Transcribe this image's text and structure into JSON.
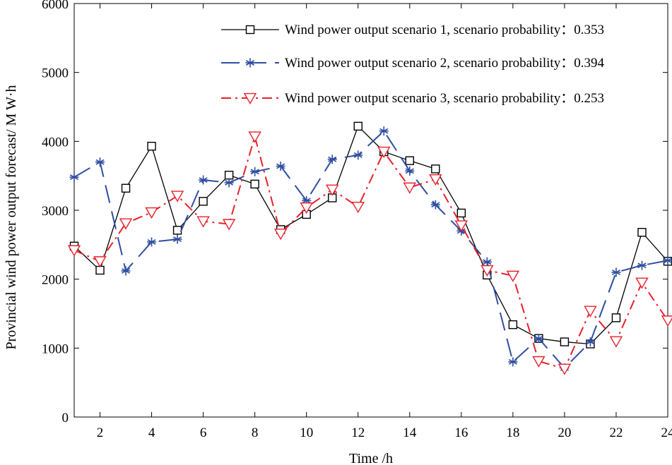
{
  "chart_data": {
    "type": "line",
    "xlabel": "Time  /h",
    "ylabel": "Provincial wind power output forecast/ M  W·h",
    "xlim": [
      1,
      24
    ],
    "ylim": [
      0,
      6000
    ],
    "xticks": [
      2,
      4,
      6,
      8,
      10,
      12,
      14,
      16,
      18,
      20,
      22,
      24
    ],
    "yticks": [
      0,
      1000,
      2000,
      3000,
      4000,
      5000,
      6000
    ],
    "x": [
      1,
      2,
      3,
      4,
      5,
      6,
      7,
      8,
      9,
      10,
      11,
      12,
      13,
      14,
      15,
      16,
      17,
      18,
      19,
      20,
      21,
      22,
      23,
      24
    ],
    "grid": false,
    "legend_position": "top-right",
    "series": [
      {
        "name": "Wind power output scenario 1, scenario probability：0.353",
        "color": "#000000",
        "marker": "square",
        "line_style": "solid",
        "values": [
          2480,
          2130,
          3320,
          3930,
          2710,
          3130,
          3510,
          3380,
          2720,
          2940,
          3180,
          4220,
          3850,
          3720,
          3600,
          2960,
          2060,
          1340,
          1140,
          1090,
          1060,
          1440,
          2680,
          2260
        ]
      },
      {
        "name": "Wind power output scenario 2, scenario probability：0.394",
        "color": "#2f4ea0",
        "marker": "asterisk",
        "line_style": "dashed",
        "values": [
          3480,
          3700,
          2120,
          2540,
          2580,
          3440,
          3400,
          3560,
          3640,
          3140,
          3740,
          3800,
          4150,
          3570,
          3080,
          2700,
          2250,
          800,
          1140,
          710,
          1090,
          2100,
          2200,
          2270
        ]
      },
      {
        "name": "Wind power output scenario 3, scenario probability：0.253",
        "color": "#e8202a",
        "marker": "triangle-down",
        "line_style": "dash-dot",
        "values": [
          2420,
          2260,
          2810,
          2970,
          3210,
          2840,
          2800,
          4070,
          2660,
          3040,
          3300,
          3050,
          3850,
          3330,
          3450,
          2780,
          2130,
          2050,
          810,
          700,
          1540,
          1100,
          1950,
          1400
        ]
      }
    ]
  }
}
